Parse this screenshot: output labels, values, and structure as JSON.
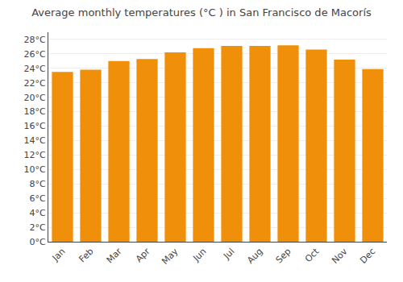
{
  "chart_data": {
    "type": "bar",
    "title": "Average monthly temperatures (°C ) in San Francisco de Macorís",
    "categories": [
      "Jan",
      "Feb",
      "Mar",
      "Apr",
      "May",
      "Jun",
      "Jul",
      "Aug",
      "Sep",
      "Oct",
      "Nov",
      "Dec"
    ],
    "values": [
      23.5,
      23.8,
      25.0,
      25.3,
      26.2,
      26.8,
      27.1,
      27.1,
      27.2,
      26.6,
      25.2,
      23.9
    ],
    "color": "#F0900A",
    "ylim": [
      0,
      29
    ],
    "yticks": [
      {
        "value": 0,
        "label": "0°C"
      },
      {
        "value": 2,
        "label": "2°C"
      },
      {
        "value": 4,
        "label": "4°C"
      },
      {
        "value": 6,
        "label": "6°C"
      },
      {
        "value": 8,
        "label": "8°C"
      },
      {
        "value": 10,
        "label": "10°C"
      },
      {
        "value": 12,
        "label": "12°C"
      },
      {
        "value": 14,
        "label": "14°C"
      },
      {
        "value": 16,
        "label": "16°C"
      },
      {
        "value": 18,
        "label": "18°C"
      },
      {
        "value": 20,
        "label": "20°C"
      },
      {
        "value": 22,
        "label": "22°C"
      },
      {
        "value": 24,
        "label": "24°C"
      },
      {
        "value": 26,
        "label": "26°C"
      },
      {
        "value": 28,
        "label": "28°C"
      }
    ],
    "grid": true
  }
}
